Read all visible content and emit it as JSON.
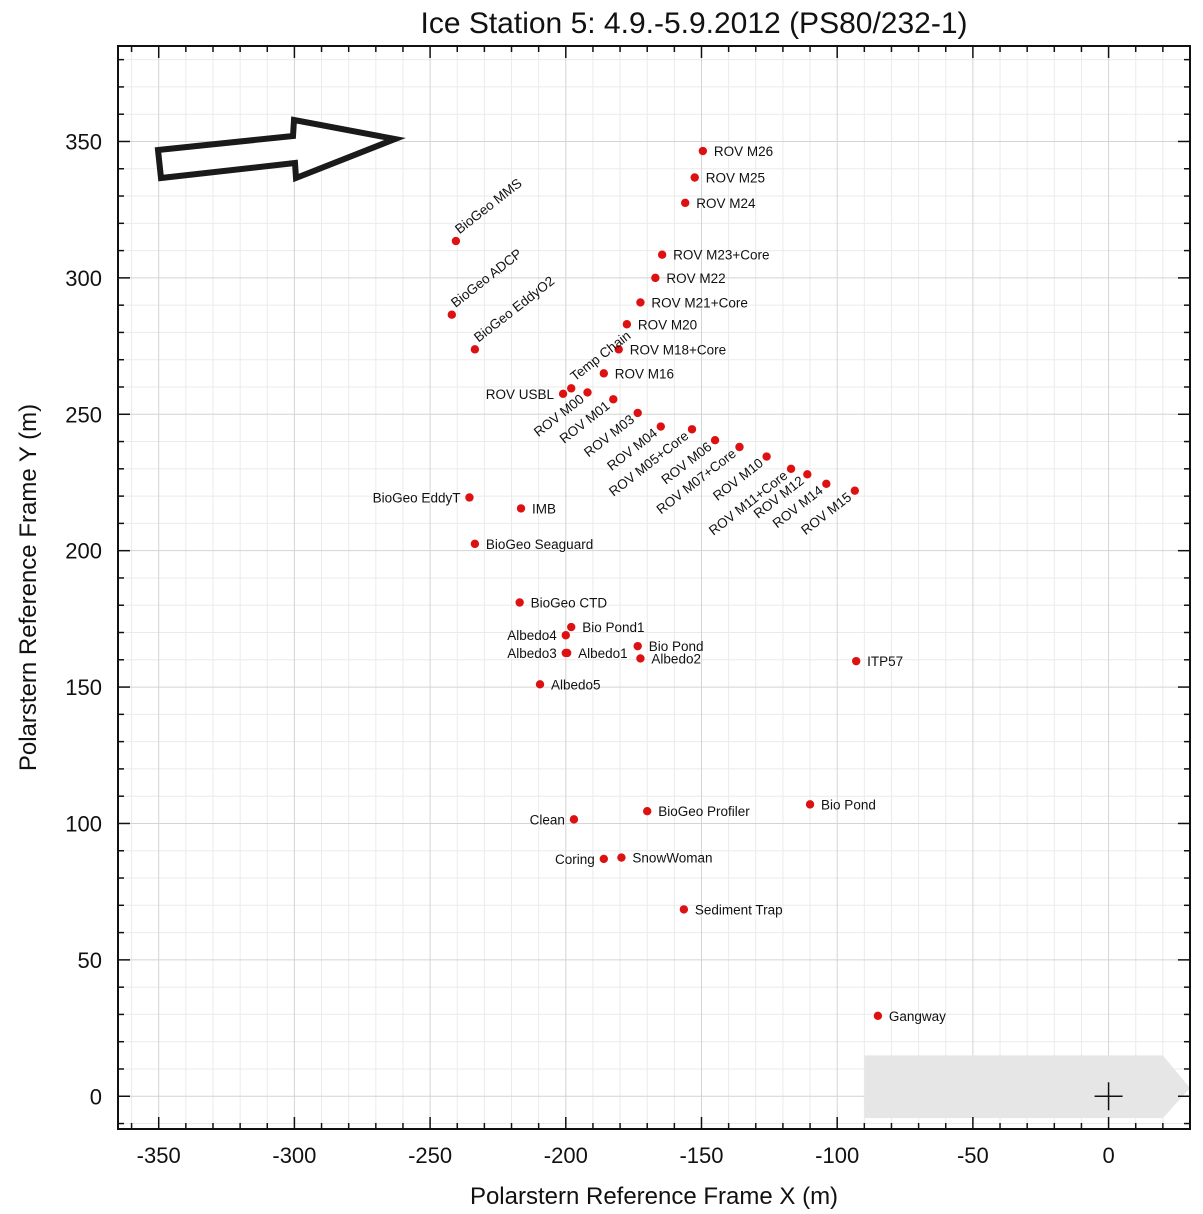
{
  "chart_data": {
    "type": "scatter",
    "title": "Ice Station 5: 4.9.-5.9.2012 (PS80/232-1)",
    "xlabel": "Polarstern Reference Frame X (m)",
    "ylabel": "Polarstern Reference Frame Y (m)",
    "xlim": [
      -365,
      30
    ],
    "ylim": [
      -12,
      385
    ],
    "x_ticks": [
      -350,
      -300,
      -250,
      -200,
      -150,
      -100,
      -50,
      0
    ],
    "y_ticks": [
      0,
      50,
      100,
      150,
      200,
      250,
      300,
      350
    ],
    "grid": true,
    "marker_color": "#dd1111",
    "ship_color": "#e6e6e6",
    "points": [
      {
        "label": "ROV M26",
        "x": -149.5,
        "y": 346.5
      },
      {
        "label": "ROV M25",
        "x": -152.5,
        "y": 336.8
      },
      {
        "label": "ROV M24",
        "x": -156,
        "y": 327.5
      },
      {
        "label": "BioGeo MMS",
        "x": -240.5,
        "y": 313.5,
        "rot": true
      },
      {
        "label": "ROV M23+Core",
        "x": -164.5,
        "y": 308.5
      },
      {
        "label": "ROV M22",
        "x": -167,
        "y": 300
      },
      {
        "label": "BioGeo ADCP",
        "x": -242,
        "y": 286.5,
        "rot": true
      },
      {
        "label": "ROV M21+Core",
        "x": -172.5,
        "y": 291
      },
      {
        "label": "ROV M20",
        "x": -177.5,
        "y": 283
      },
      {
        "label": "BioGeo EddyO2",
        "x": -233.5,
        "y": 273.8,
        "rot": true
      },
      {
        "label": "ROV M18+Core",
        "x": -180.5,
        "y": 273.8
      },
      {
        "label": "ROV M16",
        "x": -186,
        "y": 265
      },
      {
        "label": "Temp Chain",
        "x": -198,
        "y": 259.5,
        "rot": true
      },
      {
        "label": "ROV USBL",
        "x": -201,
        "y": 257.5,
        "left": true
      },
      {
        "label": "ROV M00",
        "x": -192,
        "y": 258,
        "rotDown": true
      },
      {
        "label": "ROV M01",
        "x": -182.5,
        "y": 255.5,
        "rotDown": true
      },
      {
        "label": "ROV M03",
        "x": -173.5,
        "y": 250.5,
        "rotDown": true
      },
      {
        "label": "ROV M04",
        "x": -165,
        "y": 245.5,
        "rotDown": true
      },
      {
        "label": "ROV M05+Core",
        "x": -153.5,
        "y": 244.5,
        "rotDown": true
      },
      {
        "label": "ROV M06",
        "x": -145,
        "y": 240.5,
        "rotDown": true
      },
      {
        "label": "ROV M07+Core",
        "x": -136,
        "y": 238,
        "rotDown": true
      },
      {
        "label": "ROV M10",
        "x": -126,
        "y": 234.5,
        "rotDown": true
      },
      {
        "label": "ROV M11+Core",
        "x": -117,
        "y": 230,
        "rotDown": true
      },
      {
        "label": "ROV M12",
        "x": -111,
        "y": 228,
        "rotDown": true
      },
      {
        "label": "ROV M14",
        "x": -104,
        "y": 224.5,
        "rotDown": true
      },
      {
        "label": "ROV M15",
        "x": -93.5,
        "y": 222,
        "rotDown": true
      },
      {
        "label": "BioGeo EddyT",
        "x": -235.5,
        "y": 219.5,
        "left": true
      },
      {
        "label": "IMB",
        "x": -216.5,
        "y": 215.5
      },
      {
        "label": "BioGeo Seaguard",
        "x": -233.5,
        "y": 202.5
      },
      {
        "label": "BioGeo CTD",
        "x": -217,
        "y": 181
      },
      {
        "label": "Bio Pond1",
        "x": -198,
        "y": 172
      },
      {
        "label": "Albedo4",
        "x": -200,
        "y": 169,
        "left": true
      },
      {
        "label": "Bio Pond",
        "x": -173.5,
        "y": 165
      },
      {
        "label": "Albedo1",
        "x": -199.5,
        "y": 162.5,
        "inline": true
      },
      {
        "label": "Albedo3",
        "x": -200,
        "y": 162.5,
        "left": true
      },
      {
        "label": "Albedo2",
        "x": -172.5,
        "y": 160.5
      },
      {
        "label": "ITP57",
        "x": -93,
        "y": 159.5
      },
      {
        "label": "Albedo5",
        "x": -209.5,
        "y": 151
      },
      {
        "label": "Bio Pond",
        "x": -110,
        "y": 107
      },
      {
        "label": "BioGeo Profiler",
        "x": -170,
        "y": 104.5
      },
      {
        "label": "Clean",
        "x": -197,
        "y": 101.5,
        "left": true
      },
      {
        "label": "Coring",
        "x": -186,
        "y": 87,
        "left": true
      },
      {
        "label": "SnowWoman",
        "x": -179.5,
        "y": 87.5
      },
      {
        "label": "Sediment Trap",
        "x": -156.5,
        "y": 68.5
      },
      {
        "label": "Gangway",
        "x": -85,
        "y": 29.5
      }
    ]
  }
}
